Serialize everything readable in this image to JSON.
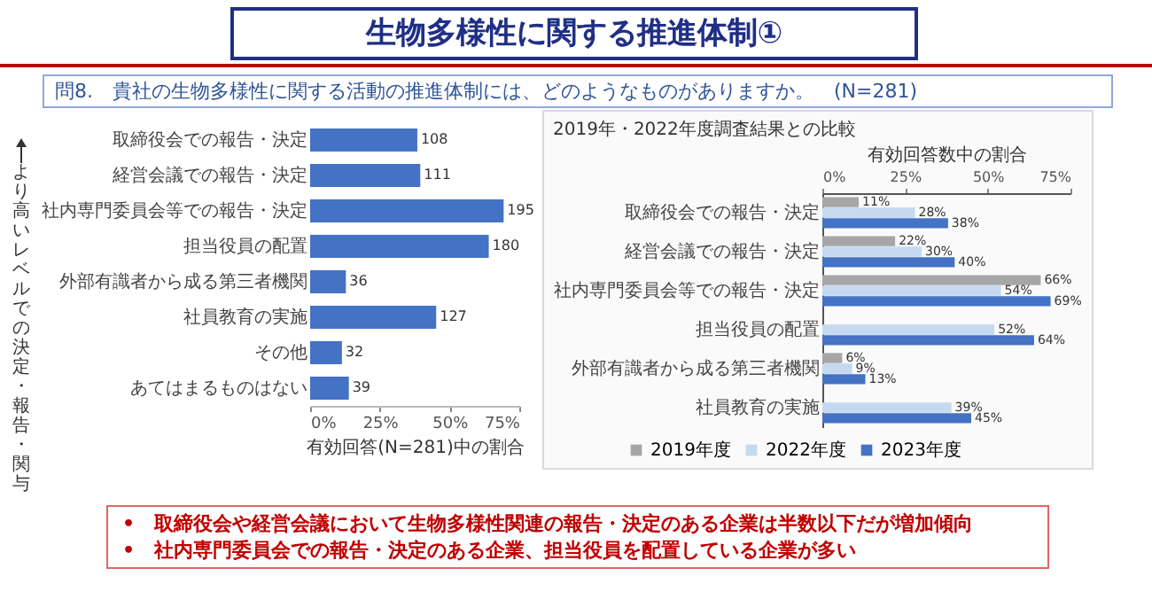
{
  "chart_data": [
    {
      "type": "bar",
      "orientation": "horizontal",
      "title": "生物多様性に関する推進体制①",
      "subtitle": "問8.　貴社の生物多様性に関する活動の推進体制には、どのようなものがありますか。　(N=281)",
      "ylabel": "より高いレベルでの決定・報告・関与",
      "x2label": "有効回答(N=281)中の割合",
      "categories": [
        "取締役会での報告・決定",
        "経営会議での報告・決定",
        "社内専門委員会等での報告・決定",
        "担当役員の配置",
        "外部有識者から成る第三者機関",
        "社員教育の実施",
        "その他",
        "あてはまるものはない"
      ],
      "values": [
        108,
        111,
        195,
        180,
        36,
        127,
        32,
        39
      ],
      "color": "#4472c4",
      "data_labels": true,
      "xlim": [
        0,
        210.75
      ],
      "x2lim": [
        0,
        75
      ],
      "x2ticks": [
        {
          "value": 0,
          "label": "0%"
        },
        {
          "value": 25,
          "label": "25%"
        },
        {
          "value": 50,
          "label": "50%"
        },
        {
          "value": 75,
          "label": "75%"
        }
      ],
      "annotations": [
        "•　取締役会や経営会議において生物多様性関連の報告・決定のある企業は半数以下だが増加傾向",
        "•　社内専門委員会での報告・決定のある企業、担当役員を配置している企業が多い"
      ]
    },
    {
      "type": "bar",
      "orientation": "horizontal",
      "title": "2019年・2022年度調査結果との比較",
      "xlabel": "有効回答数中の割合",
      "categories": [
        "取締役会での報告・決定",
        "経営会議での報告・決定",
        "社内専門委員会等での報告・決定",
        "担当役員の配置",
        "外部有識者から成る第三者機関",
        "社員教育の実施"
      ],
      "series": [
        {
          "name": "2019年度",
          "color": "#a6a6a6",
          "values": [
            11,
            22,
            66,
            null,
            6,
            null
          ],
          "value_labels": [
            "11%",
            "22%",
            "66%",
            null,
            "6%",
            null
          ]
        },
        {
          "name": "2022年度",
          "color": "#c5d9f1",
          "values": [
            28,
            30,
            54,
            52,
            9,
            39
          ],
          "value_labels": [
            "28%",
            "30%",
            "54%",
            "52%",
            "9%",
            "39%"
          ]
        },
        {
          "name": "2023年度",
          "color": "#4472c4",
          "values": [
            38,
            40,
            69,
            64,
            13,
            45
          ],
          "value_labels": [
            "38%",
            "40%",
            "69%",
            "64%",
            "13%",
            "45%"
          ]
        }
      ],
      "xlim": [
        0,
        75
      ],
      "xticks": [
        {
          "value": 0,
          "label": "0%"
        },
        {
          "value": 25,
          "label": "25%"
        },
        {
          "value": 50,
          "label": "50%"
        },
        {
          "value": 75,
          "label": "75%"
        }
      ],
      "legend": "bottom"
    }
  ]
}
